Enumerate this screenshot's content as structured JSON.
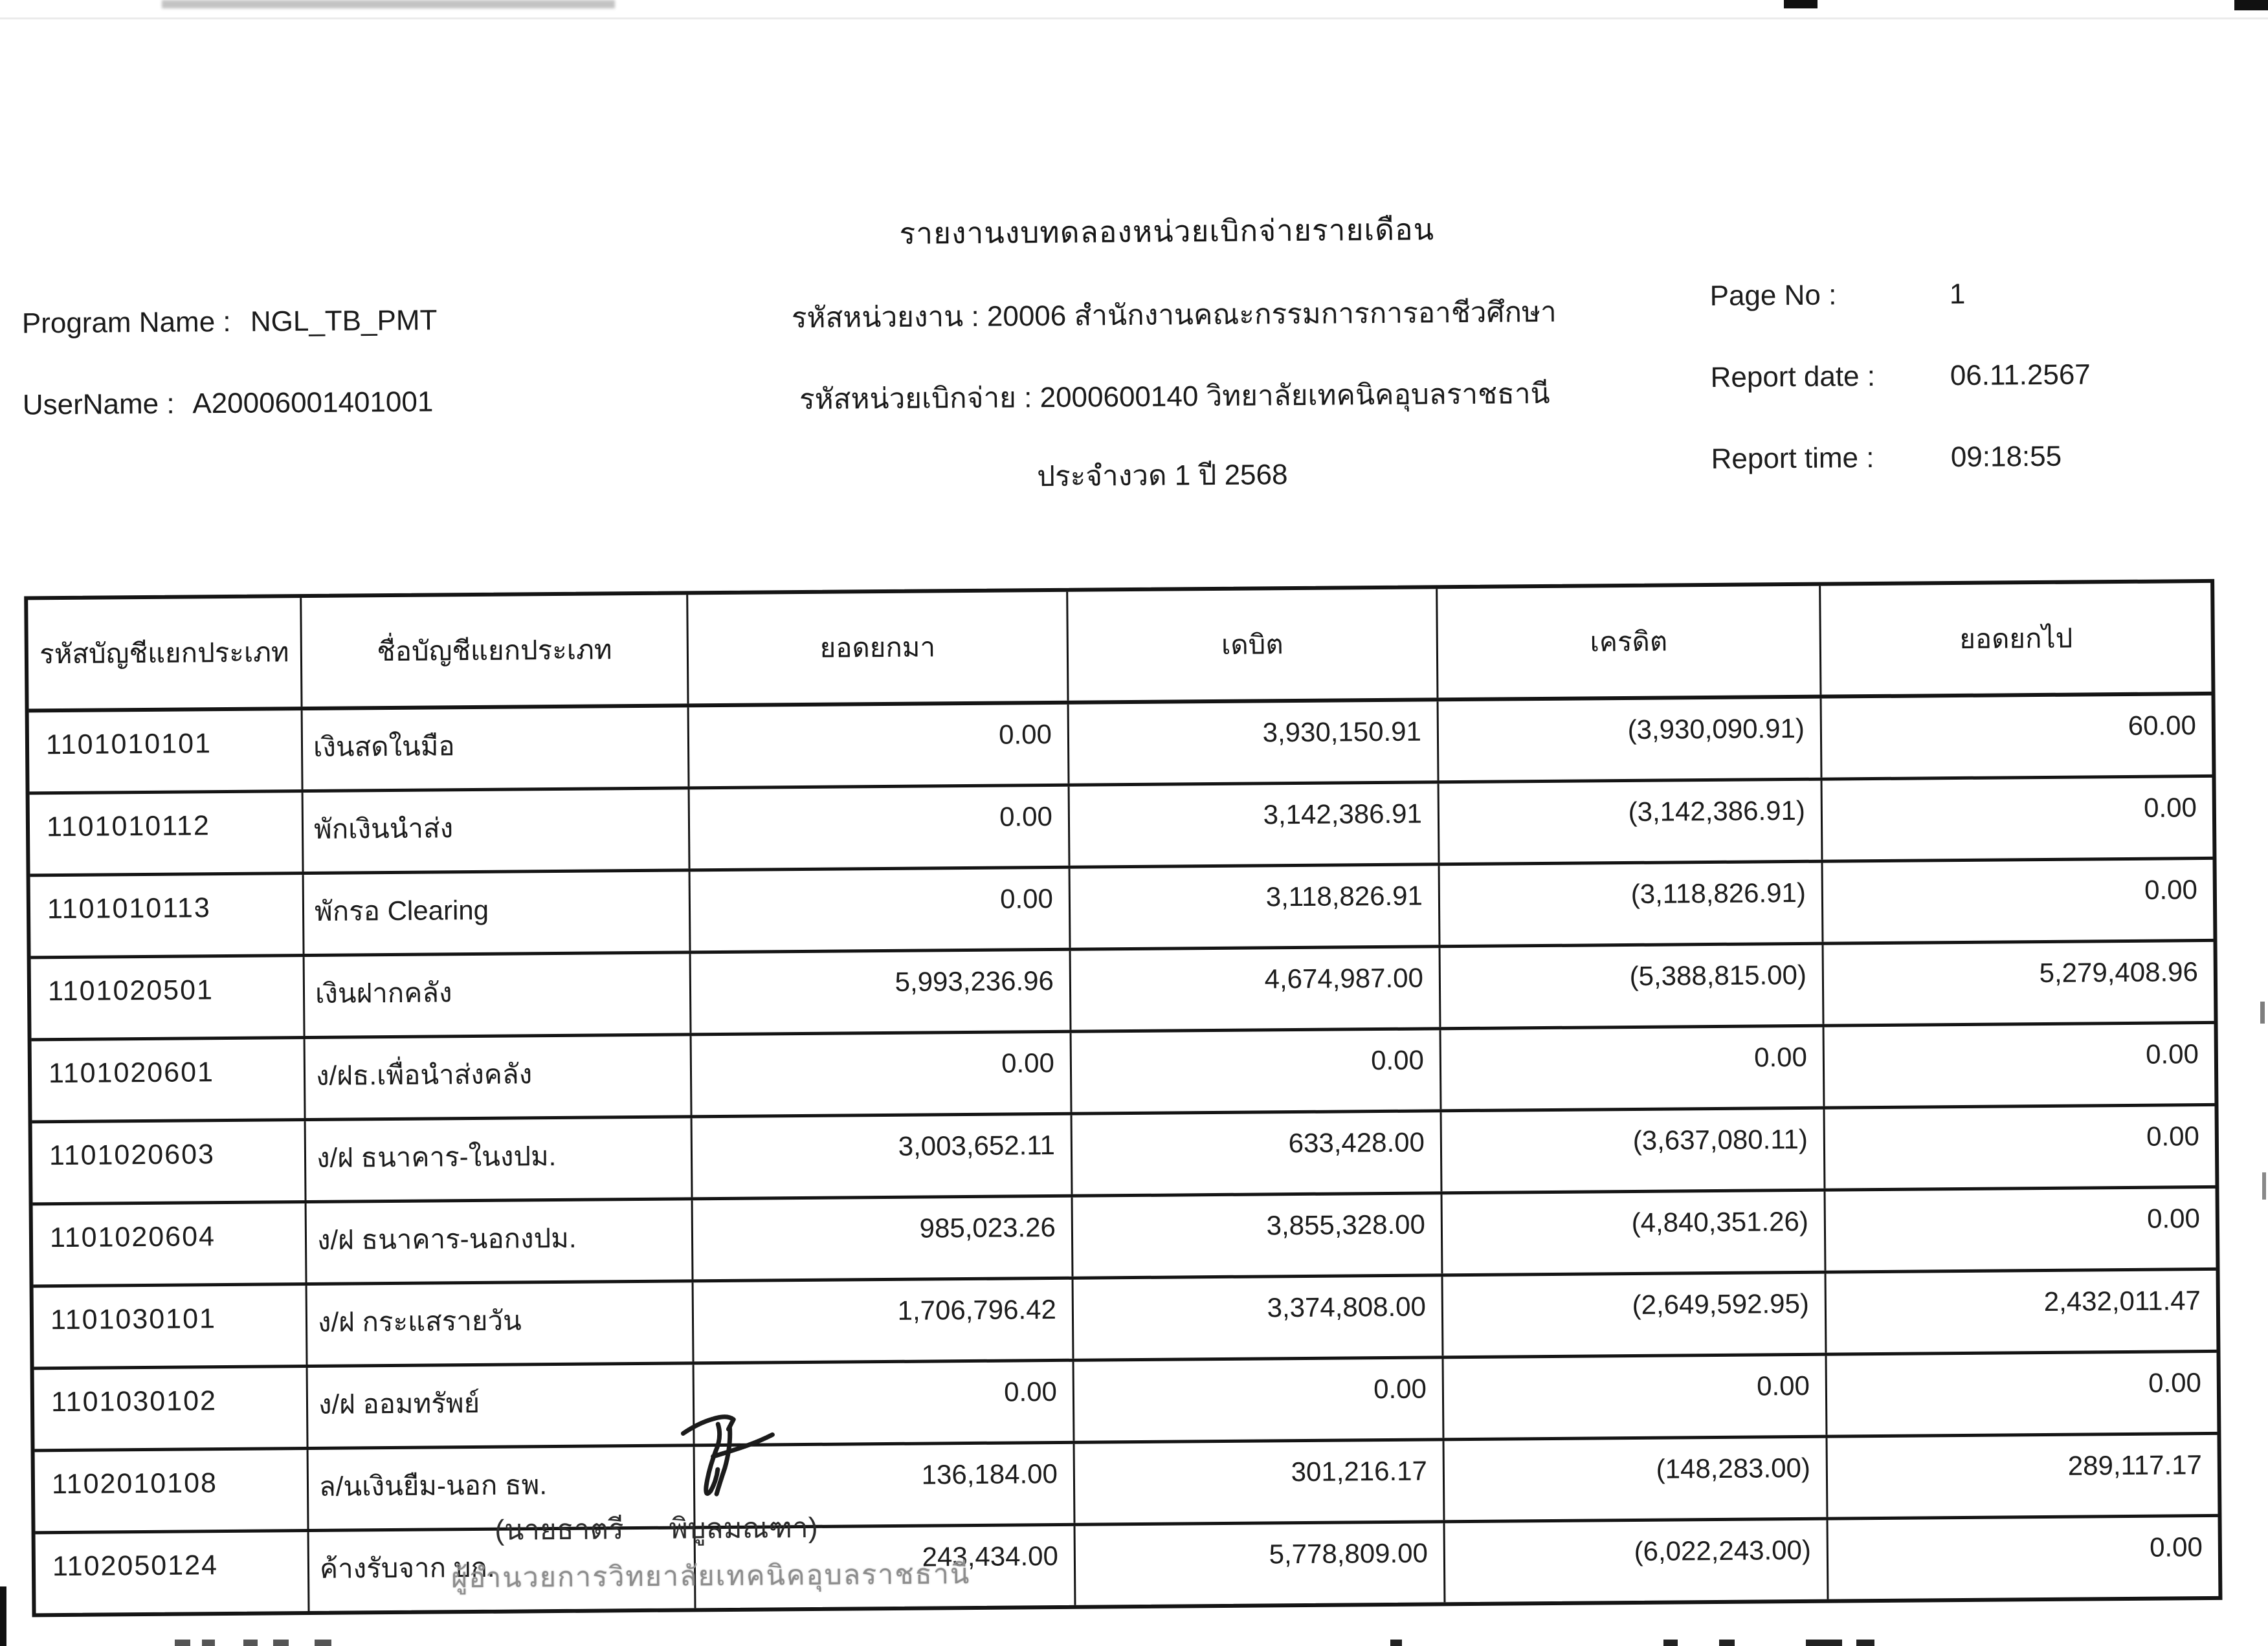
{
  "header": {
    "title": "รายงานงบทดลองหน่วยเบิกจ่ายรายเดือน",
    "program_name_label": "Program Name :",
    "program_name": "NGL_TB_PMT",
    "username_label": "UserName :",
    "username": "A20006001401001",
    "agency_line": "รหัสหน่วยงาน : 20006 สำนักงานคณะกรรมการการอาชีวศึกษา",
    "unit_line": "รหัสหน่วยเบิกจ่าย : 2000600140 วิทยาลัยเทคนิคอุบลราชธานี",
    "period_line": "ประจำงวด 1 ปี 2568",
    "page_no_label": "Page No :",
    "page_no": "1",
    "report_date_label": "Report date :",
    "report_date": "06.11.2567",
    "report_time_label": "Report time :",
    "report_time": "09:18:55"
  },
  "table": {
    "columns": [
      "รหัสบัญชีแยกประเภท",
      "ชื่อบัญชีแยกประเภท",
      "ยอดยกมา",
      "เดบิต",
      "เครดิต",
      "ยอดยกไป"
    ],
    "rows": [
      {
        "code": "1101010101",
        "name": "เงินสดในมือ",
        "bring_forward": "0.00",
        "debit": "3,930,150.91",
        "credit": "(3,930,090.91)",
        "carry_forward": "60.00"
      },
      {
        "code": "1101010112",
        "name": "พักเงินนำส่ง",
        "bring_forward": "0.00",
        "debit": "3,142,386.91",
        "credit": "(3,142,386.91)",
        "carry_forward": "0.00"
      },
      {
        "code": "1101010113",
        "name": "พักรอ Clearing",
        "bring_forward": "0.00",
        "debit": "3,118,826.91",
        "credit": "(3,118,826.91)",
        "carry_forward": "0.00"
      },
      {
        "code": "1101020501",
        "name": "เงินฝากคลัง",
        "bring_forward": "5,993,236.96",
        "debit": "4,674,987.00",
        "credit": "(5,388,815.00)",
        "carry_forward": "5,279,408.96"
      },
      {
        "code": "1101020601",
        "name": "ง/ฝธ.เพื่อนำส่งคลัง",
        "bring_forward": "0.00",
        "debit": "0.00",
        "credit": "0.00",
        "carry_forward": "0.00"
      },
      {
        "code": "1101020603",
        "name": "ง/ฝ ธนาคาร-ในงปม.",
        "bring_forward": "3,003,652.11",
        "debit": "633,428.00",
        "credit": "(3,637,080.11)",
        "carry_forward": "0.00"
      },
      {
        "code": "1101020604",
        "name": "ง/ฝ ธนาคาร-นอกงปม.",
        "bring_forward": "985,023.26",
        "debit": "3,855,328.00",
        "credit": "(4,840,351.26)",
        "carry_forward": "0.00"
      },
      {
        "code": "1101030101",
        "name": "ง/ฝ กระแสรายวัน",
        "bring_forward": "1,706,796.42",
        "debit": "3,374,808.00",
        "credit": "(2,649,592.95)",
        "carry_forward": "2,432,011.47"
      },
      {
        "code": "1101030102",
        "name": "ง/ฝ ออมทรัพย์",
        "bring_forward": "0.00",
        "debit": "0.00",
        "credit": "0.00",
        "carry_forward": "0.00"
      },
      {
        "code": "1102010108",
        "name": "ล/นเงินยืม-นอก ธพ.",
        "bring_forward": "136,184.00",
        "debit": "301,216.17",
        "credit": "(148,283.00)",
        "carry_forward": "289,117.17"
      },
      {
        "code": "1102050124",
        "name": "ค้างรับจาก บก.",
        "bring_forward": "243,434.00",
        "debit": "5,778,809.00",
        "credit": "(6,022,243.00)",
        "carry_forward": "0.00"
      }
    ]
  },
  "stamp": {
    "name_line": "(นายธาตรี พิบูลมณฑา)",
    "title_line": "ผู้อำนวยการวิทยาลัยเทคนิคอุบลราชธานี"
  }
}
